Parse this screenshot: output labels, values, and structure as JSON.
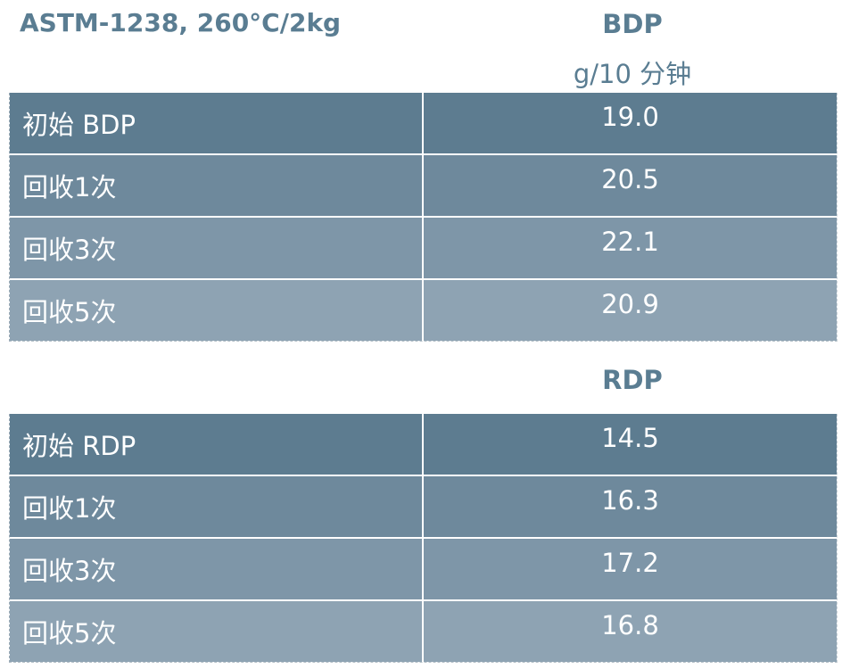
{
  "header": {
    "test_label": "ASTM-1238, 260°C/2kg",
    "unit": "g/10 分钟"
  },
  "colors": {
    "header_text": "#5a7d92",
    "row_shades": [
      "#5d7c90",
      "#6e899c",
      "#7e96a8",
      "#8ea3b3"
    ],
    "cell_text": "#ffffff"
  },
  "chart_data": {
    "type": "table",
    "title": "ASTM-1238, 260°C/2kg",
    "unit": "g/10 分钟",
    "groups": [
      {
        "name": "BDP",
        "rows": [
          {
            "label": "初始 BDP",
            "value": "19.0"
          },
          {
            "label": "回收1次",
            "value": "20.5"
          },
          {
            "label": "回收3次",
            "value": "22.1"
          },
          {
            "label": "回收5次",
            "value": "20.9"
          }
        ]
      },
      {
        "name": "RDP",
        "rows": [
          {
            "label": "初始 RDP",
            "value": "14.5"
          },
          {
            "label": "回收1次",
            "value": "16.3"
          },
          {
            "label": "回收3次",
            "value": "17.2"
          },
          {
            "label": "回收5次",
            "value": "16.8"
          }
        ]
      }
    ]
  }
}
